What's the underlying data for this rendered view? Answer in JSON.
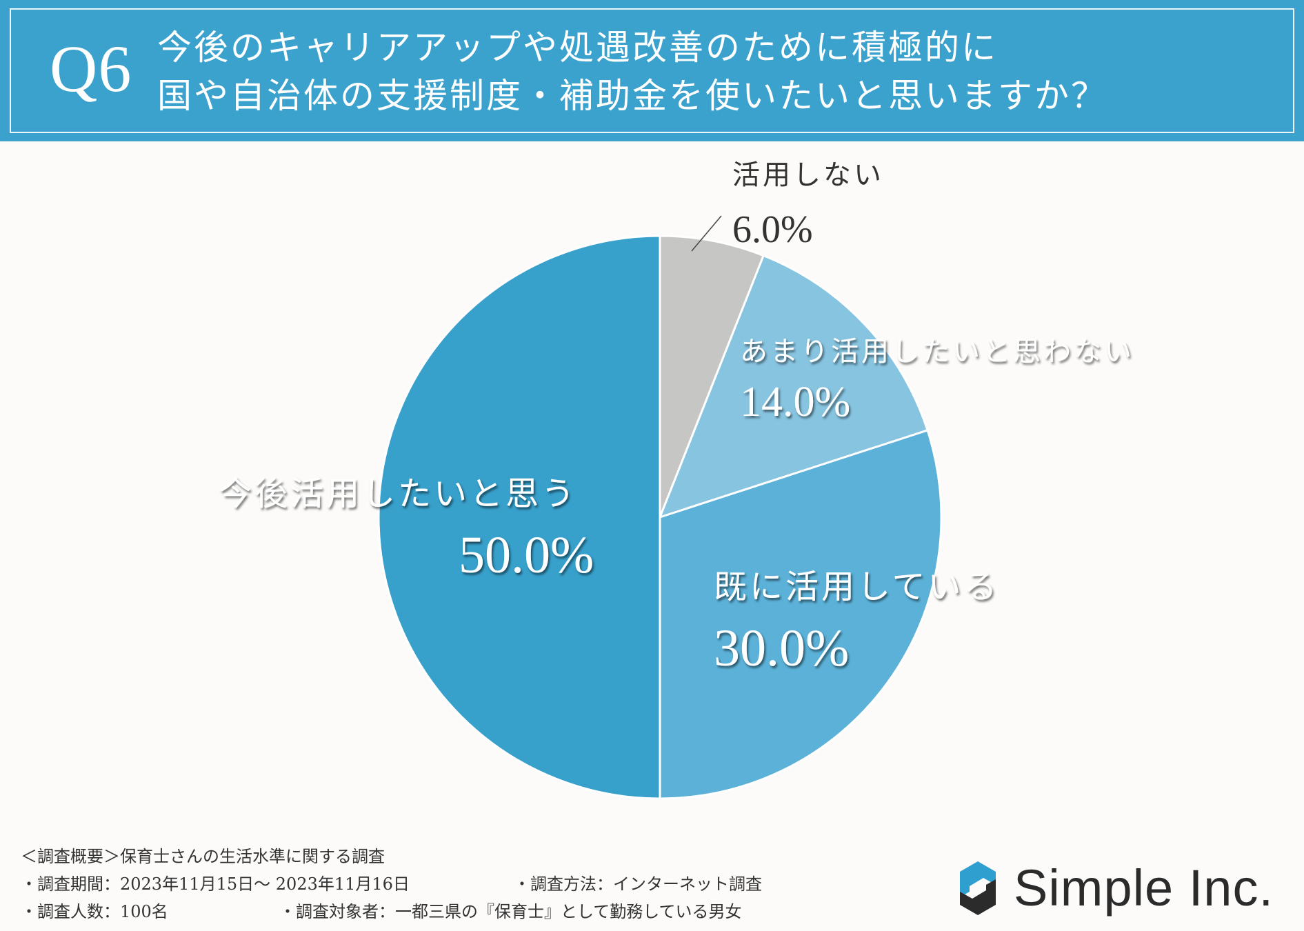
{
  "header": {
    "q_label": "Q6",
    "question_line1": "今後のキャリアアップや処遇改善のために積極的に",
    "question_line2": "国や自治体の支援制度・補助金を使いたいと思いますか？"
  },
  "chart_data": {
    "type": "pie",
    "start_angle_deg": 0,
    "direction": "clockwise",
    "slices": [
      {
        "name": "活用しない",
        "pct_label": "6.0%",
        "value": 6.0,
        "color": "#c6c6c4",
        "label_color": "#333333"
      },
      {
        "name": "あまり活用したいと思わない",
        "pct_label": "14.0%",
        "value": 14.0,
        "color": "#87c4e0",
        "label_color": "#ffffff"
      },
      {
        "name": "既に活用している",
        "pct_label": "30.0%",
        "value": 30.0,
        "color": "#5bb1d8",
        "label_color": "#ffffff"
      },
      {
        "name": "今後活用したいと思う",
        "pct_label": "50.0%",
        "value": 50.0,
        "color": "#37a0cb",
        "label_color": "#ffffff"
      }
    ]
  },
  "footer": {
    "survey_title": "＜調査概要＞保育士さんの生活水準に関する調査",
    "period": "・調査期間：2023年11月15日～ 2023年11月16日",
    "method": "・調査方法：インターネット調査",
    "respondents": "・調査人数：100名",
    "target": "・調査対象者：一都三県の『保育士』として勤務している男女"
  },
  "logo": {
    "text": "Simple Inc.",
    "icon": "simple-logo-icon"
  }
}
